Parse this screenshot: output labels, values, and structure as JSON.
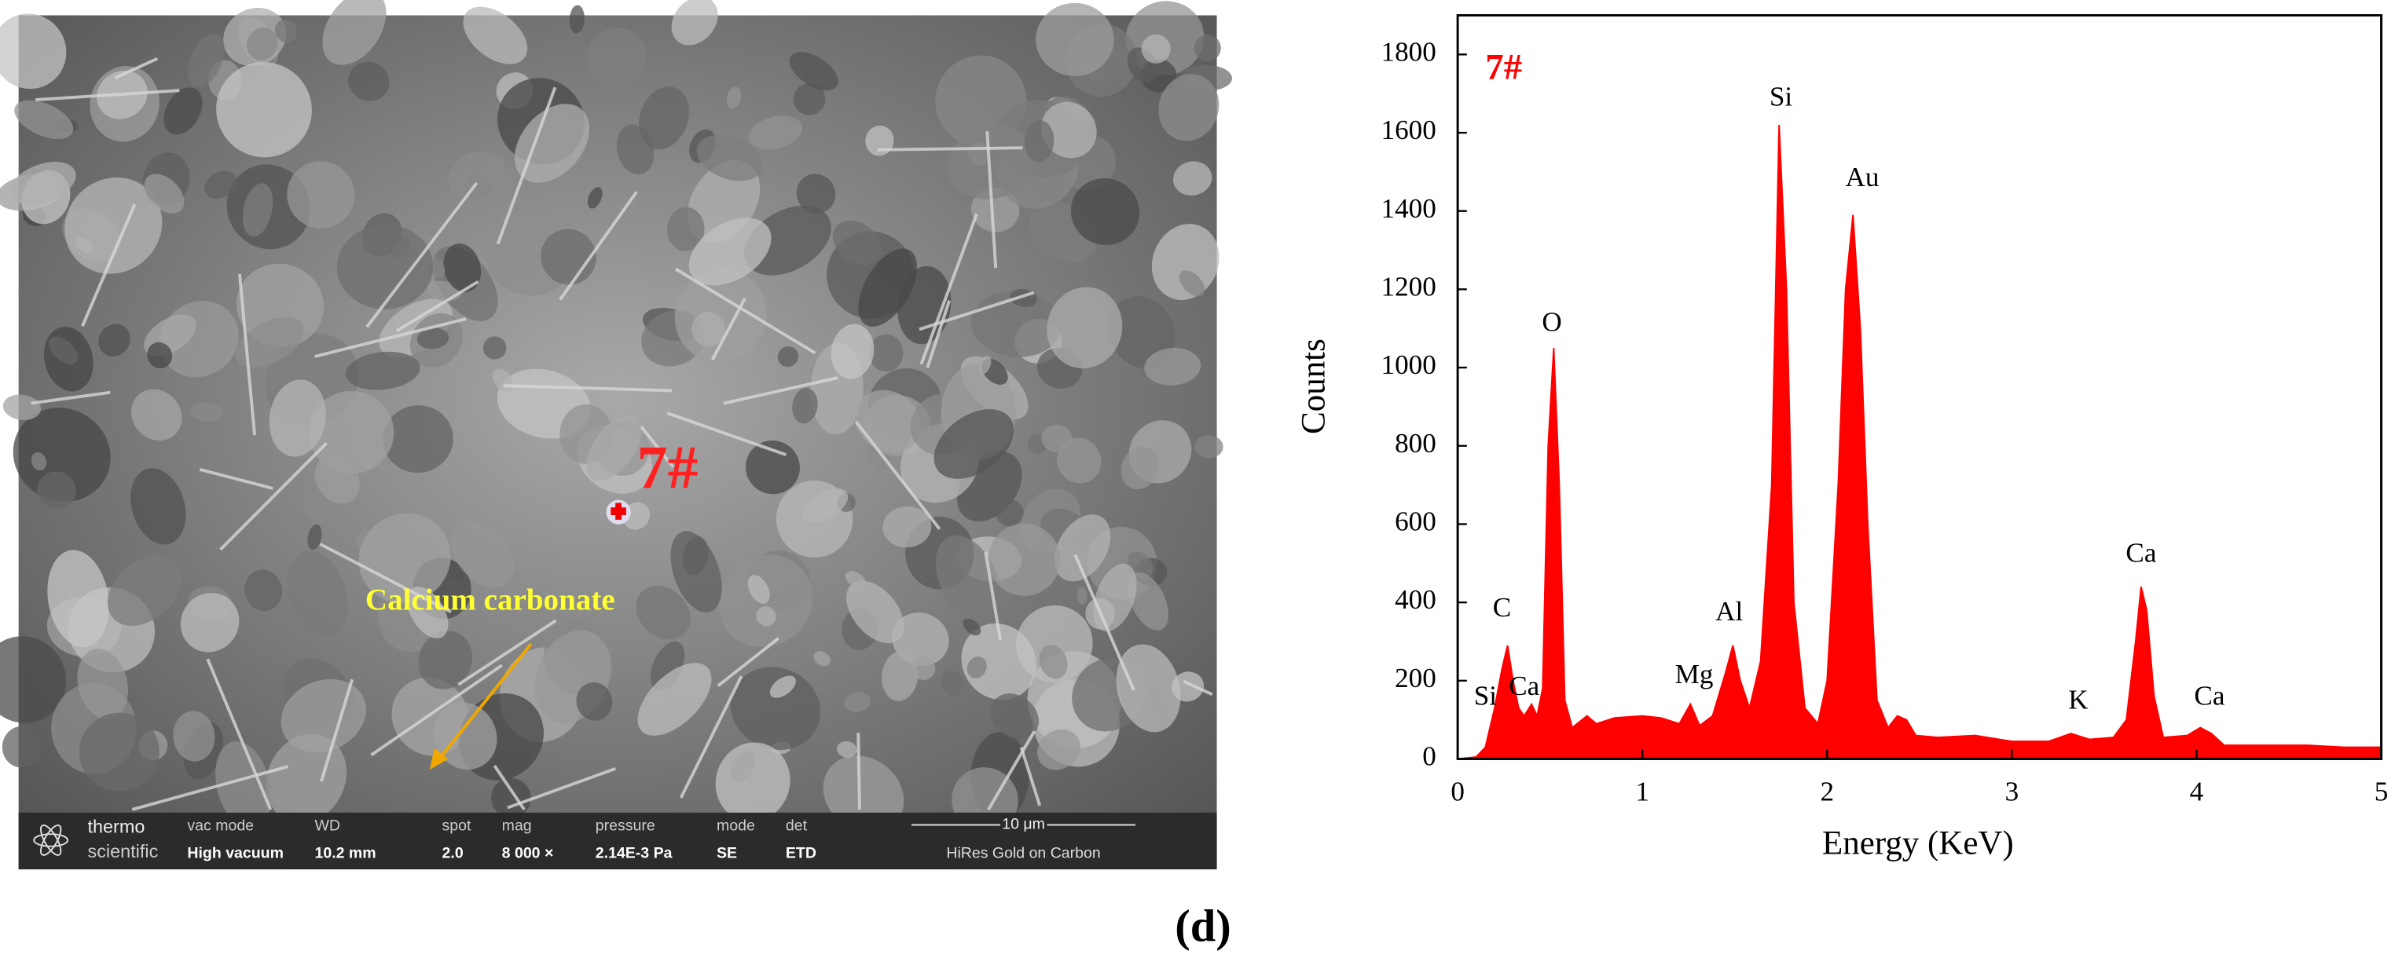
{
  "chart_data": {
    "type": "area",
    "sample_label": "7#",
    "xlabel": "Energy (KeV)",
    "ylabel": "Counts",
    "color": "#ff0000",
    "x": [
      0,
      0.1,
      0.15,
      0.2,
      0.24,
      0.27,
      0.3,
      0.33,
      0.36,
      0.4,
      0.43,
      0.46,
      0.49,
      0.52,
      0.55,
      0.58,
      0.62,
      0.7,
      0.75,
      0.85,
      1.0,
      1.1,
      1.2,
      1.26,
      1.31,
      1.38,
      1.45,
      1.49,
      1.53,
      1.58,
      1.64,
      1.7,
      1.74,
      1.78,
      1.82,
      1.88,
      1.95,
      2.0,
      2.06,
      2.1,
      2.14,
      2.18,
      2.22,
      2.27,
      2.33,
      2.38,
      2.43,
      2.48,
      2.6,
      2.8,
      3.0,
      3.2,
      3.32,
      3.42,
      3.55,
      3.62,
      3.67,
      3.7,
      3.73,
      3.77,
      3.82,
      3.95,
      4.02,
      4.08,
      4.15,
      4.3,
      4.6,
      4.8,
      5.0
    ],
    "values": [
      0,
      5,
      30,
      130,
      230,
      290,
      200,
      130,
      110,
      140,
      110,
      180,
      800,
      1050,
      700,
      150,
      80,
      110,
      90,
      105,
      110,
      105,
      90,
      140,
      85,
      110,
      220,
      290,
      200,
      130,
      250,
      700,
      1620,
      1200,
      400,
      130,
      90,
      200,
      700,
      1200,
      1390,
      1100,
      600,
      150,
      80,
      110,
      100,
      60,
      55,
      60,
      45,
      45,
      65,
      50,
      55,
      100,
      300,
      440,
      380,
      160,
      55,
      60,
      80,
      65,
      35,
      35,
      35,
      30,
      30
    ],
    "annotations": [
      {
        "text": "Si",
        "x": 0.15,
        "y": 155
      },
      {
        "text": "Ca",
        "x": 0.36,
        "y": 180
      },
      {
        "text": "C",
        "x": 0.24,
        "y": 380
      },
      {
        "text": "O",
        "x": 0.51,
        "y": 1110
      },
      {
        "text": "Mg",
        "x": 1.28,
        "y": 210
      },
      {
        "text": "Al",
        "x": 1.47,
        "y": 370
      },
      {
        "text": "Si",
        "x": 1.75,
        "y": 1685
      },
      {
        "text": "Au",
        "x": 2.19,
        "y": 1480
      },
      {
        "text": "K",
        "x": 3.36,
        "y": 145
      },
      {
        "text": "Ca",
        "x": 3.7,
        "y": 520
      },
      {
        "text": "Ca",
        "x": 4.07,
        "y": 155
      }
    ],
    "xlim": [
      0,
      5
    ],
    "xticks": [
      0,
      1,
      2,
      3,
      4,
      5
    ],
    "ylim": [
      0,
      1900
    ],
    "yticks": [
      0,
      200,
      400,
      600,
      800,
      1000,
      1200,
      1400,
      1600,
      1800
    ]
  },
  "sem_image": {
    "point_label": "7#",
    "arrow_label": "Calcium carbonate",
    "logo": [
      "thermo",
      "scientific"
    ],
    "info": [
      {
        "key": "vac mode",
        "val": "High vacuum"
      },
      {
        "key": "WD",
        "val": "10.2 mm"
      },
      {
        "key": "spot",
        "val": "2.0"
      },
      {
        "key": "mag",
        "val": "8 000 ×"
      },
      {
        "key": "pressure",
        "val": "2.14E-3 Pa"
      },
      {
        "key": "mode",
        "val": "SE"
      },
      {
        "key": "det",
        "val": "ETD"
      }
    ],
    "scale_bar": "10 μm",
    "coating": "HiRes Gold on Carbon"
  },
  "caption": "(d)"
}
